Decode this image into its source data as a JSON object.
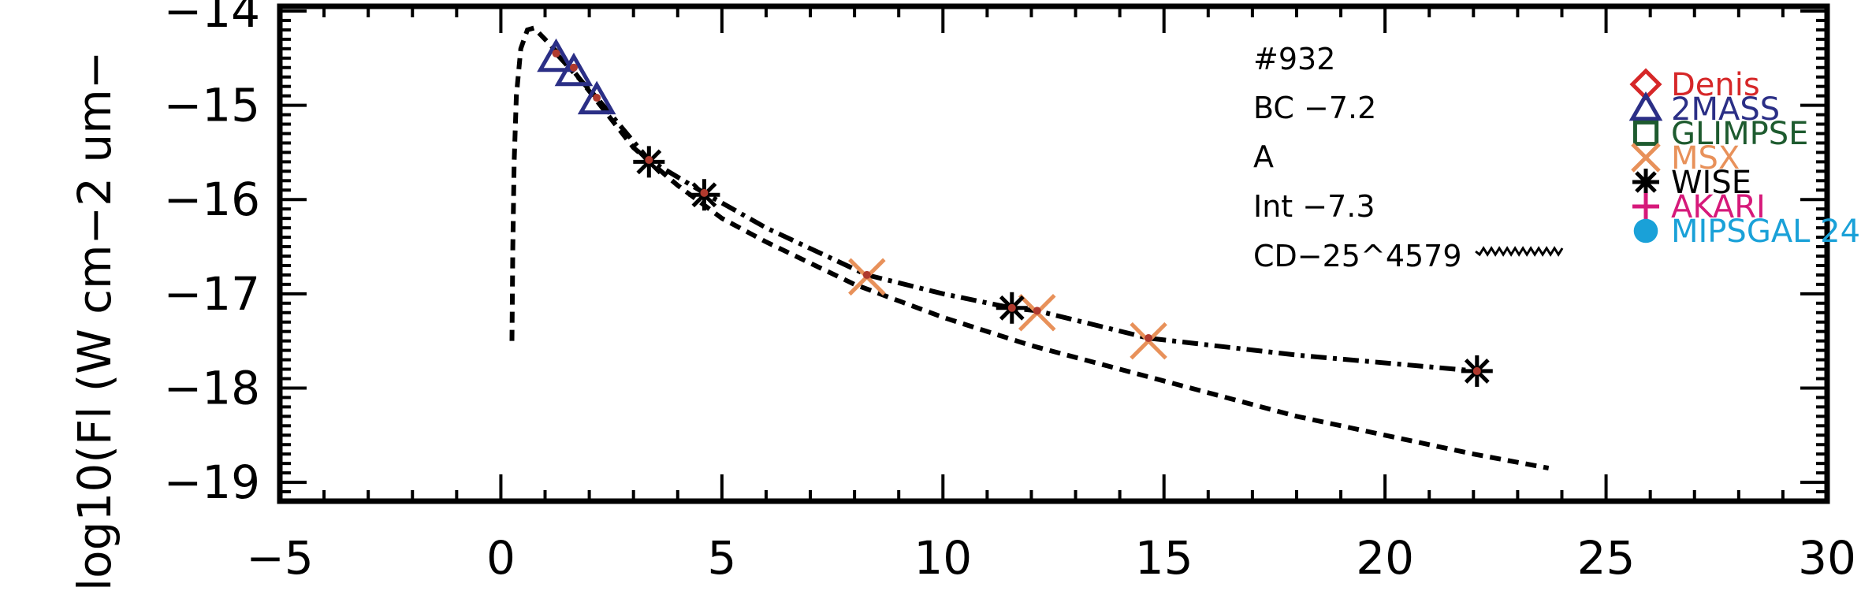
{
  "chart_data": {
    "type": "scatter",
    "ylabel": "log10(Fl (W cm−2 um−",
    "xlim": [
      -5,
      30
    ],
    "ylim": [
      -19.2,
      -13.95
    ],
    "x_ticks": [
      -5,
      0,
      5,
      10,
      15,
      20,
      25,
      30
    ],
    "x_tick_labels": [
      "−5",
      "0",
      "5",
      "10",
      "15",
      "20",
      "25",
      "30"
    ],
    "y_ticks": [
      -19,
      -18,
      -17,
      -16,
      -15,
      -14
    ],
    "y_tick_labels": [
      "−19",
      "−18",
      "−17",
      "−16",
      "−15",
      "−14"
    ],
    "annotations": [
      "#932",
      "BC  −7.2",
      "A",
      "Int  −7.3",
      "CD−25^4579"
    ],
    "legend": [
      {
        "label": "Denis",
        "marker": "diamond",
        "color": "#d62728"
      },
      {
        "label": "2MASS",
        "marker": "triangle",
        "color": "#2b2f86"
      },
      {
        "label": "GLIMPSE",
        "marker": "square",
        "color": "#1e5b2f"
      },
      {
        "label": "MSX",
        "marker": "x",
        "color": "#e8915a"
      },
      {
        "label": "WISE",
        "marker": "asterisk",
        "color": "#000000"
      },
      {
        "label": "AKARI",
        "marker": "plus",
        "color": "#d6197a"
      },
      {
        "label": "MIPSGAL 24",
        "marker": "circle",
        "color": "#1aa1d8"
      }
    ],
    "series": [
      {
        "marker": "triangle",
        "color": "#2b2f86",
        "points": [
          [
            1.25,
            -14.5
          ],
          [
            1.65,
            -14.65
          ],
          [
            2.17,
            -14.95
          ]
        ]
      },
      {
        "marker": "x",
        "color": "#e8915a",
        "points": [
          [
            8.28,
            -16.82
          ],
          [
            12.13,
            -17.2
          ],
          [
            14.65,
            -17.5
          ]
        ]
      },
      {
        "marker": "asterisk",
        "color": "#000000",
        "points": [
          [
            3.35,
            -15.6
          ],
          [
            4.6,
            -15.95
          ],
          [
            11.56,
            -17.15
          ],
          [
            22.08,
            -17.82
          ]
        ]
      },
      {
        "marker": "dot",
        "color": "#b03a2e",
        "points": [
          [
            1.25,
            -14.45
          ],
          [
            1.65,
            -14.6
          ],
          [
            2.17,
            -14.92
          ],
          [
            3.35,
            -15.58
          ],
          [
            4.6,
            -15.93
          ],
          [
            8.28,
            -16.8
          ],
          [
            11.56,
            -17.15
          ],
          [
            12.13,
            -17.18
          ],
          [
            14.65,
            -17.47
          ],
          [
            22.08,
            -17.82
          ]
        ]
      }
    ],
    "curves": [
      {
        "style": "dashed",
        "points": [
          [
            0.25,
            -17.5
          ],
          [
            0.27,
            -16.5
          ],
          [
            0.3,
            -15.6
          ],
          [
            0.35,
            -14.9
          ],
          [
            0.45,
            -14.4
          ],
          [
            0.6,
            -14.2
          ],
          [
            0.75,
            -14.18
          ],
          [
            1.0,
            -14.3
          ],
          [
            1.5,
            -14.55
          ],
          [
            2.0,
            -14.85
          ],
          [
            3.0,
            -15.45
          ],
          [
            4.0,
            -15.85
          ],
          [
            5.0,
            -16.2
          ],
          [
            6.0,
            -16.45
          ],
          [
            8.0,
            -16.9
          ],
          [
            10.0,
            -17.25
          ],
          [
            12.0,
            -17.55
          ],
          [
            14.0,
            -17.8
          ],
          [
            16.0,
            -18.05
          ],
          [
            18.0,
            -18.3
          ],
          [
            20.0,
            -18.5
          ],
          [
            22.0,
            -18.7
          ],
          [
            23.7,
            -18.85
          ]
        ]
      },
      {
        "style": "dashdot",
        "points": [
          [
            1.25,
            -14.45
          ],
          [
            2.17,
            -14.92
          ],
          [
            3.35,
            -15.58
          ],
          [
            4.6,
            -15.93
          ],
          [
            6.0,
            -16.3
          ],
          [
            8.28,
            -16.8
          ],
          [
            10.0,
            -17.0
          ],
          [
            11.56,
            -17.15
          ],
          [
            12.13,
            -17.18
          ],
          [
            14.65,
            -17.47
          ],
          [
            18.0,
            -17.65
          ],
          [
            22.08,
            -17.82
          ]
        ]
      },
      {
        "style": "wavy",
        "points": [
          [
            22.05,
            -16.55
          ],
          [
            24.0,
            -16.55
          ]
        ]
      }
    ]
  }
}
